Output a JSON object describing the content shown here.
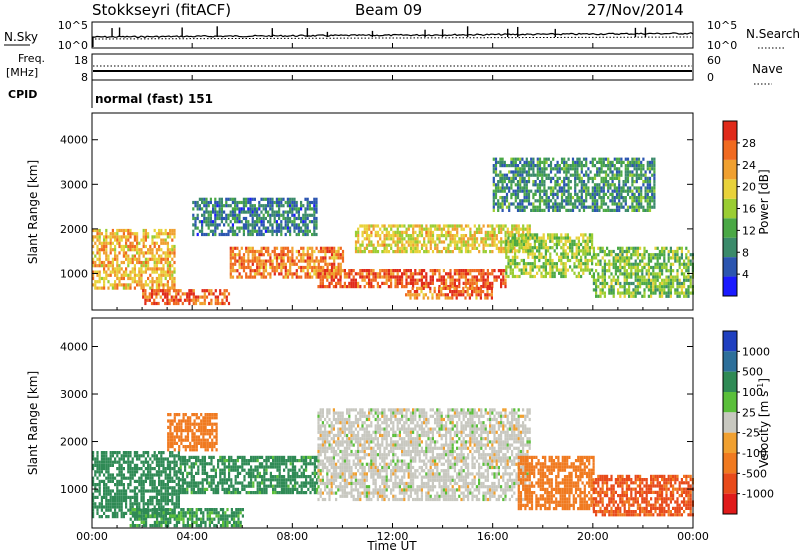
{
  "header": {
    "station": "Stokkseyri (fitACF)",
    "beam": "Beam 09",
    "date": "27/Nov/2014"
  },
  "top_panels": {
    "nsky_label": "N.Sky",
    "nsearch_label": "N.Search",
    "freq_label_1": "Freq.",
    "freq_label_2": "[MHz]",
    "nave_label": "Nave",
    "cpid_label": "CPID",
    "cpid_value": "normal (fast) 151",
    "nsky_ticks": [
      "10^5",
      "10^0"
    ],
    "nsearch_ticks": [
      "10^5",
      "10^0"
    ],
    "freq_ticks": [
      "18",
      "8"
    ],
    "nave_ticks": [
      "60",
      "0"
    ]
  },
  "chart_data": [
    {
      "type": "heatmap",
      "title": "",
      "quantity": "Power",
      "ylabel": "Slant Range [km]",
      "xlabel": "",
      "ylim": [
        180,
        4600
      ],
      "yticks": [
        "1000",
        "2000",
        "3000",
        "4000"
      ],
      "colorbar_label": "Power [dB]",
      "colorbar_ticks": [
        "4",
        "8",
        "12",
        "16",
        "20",
        "24",
        "28"
      ],
      "colorbar_range": [
        0,
        32
      ],
      "colors": [
        "#1a1aff",
        "#2b55b0",
        "#3a8a6a",
        "#4aa845",
        "#9acd32",
        "#e8d23a",
        "#f0a030",
        "#f06a20",
        "#e02a1a"
      ],
      "echo_regions": [
        {
          "t_start": 0.0,
          "t_end": 3.3,
          "range_start": 700,
          "range_end": 2000,
          "level_db": 22
        },
        {
          "t_start": 2.0,
          "t_end": 5.5,
          "range_start": 300,
          "range_end": 650,
          "level_db": 28
        },
        {
          "t_start": 5.5,
          "t_end": 10.0,
          "range_start": 900,
          "range_end": 1600,
          "level_db": 25
        },
        {
          "t_start": 9.0,
          "t_end": 16.5,
          "range_start": 700,
          "range_end": 1100,
          "level_db": 28
        },
        {
          "t_start": 12.5,
          "t_end": 16.0,
          "range_start": 450,
          "range_end": 700,
          "level_db": 26
        },
        {
          "t_start": 10.5,
          "t_end": 17.5,
          "range_start": 1500,
          "range_end": 2100,
          "level_db": 20
        },
        {
          "t_start": 16.5,
          "t_end": 20.0,
          "range_start": 900,
          "range_end": 1900,
          "level_db": 16
        },
        {
          "t_start": 20.0,
          "t_end": 24.0,
          "range_start": 500,
          "range_end": 1600,
          "level_db": 14
        },
        {
          "t_start": 4.0,
          "t_end": 9.0,
          "range_start": 1900,
          "range_end": 2700,
          "level_db": 8
        },
        {
          "t_start": 16.0,
          "t_end": 22.5,
          "range_start": 2400,
          "range_end": 3600,
          "level_db": 10
        }
      ]
    },
    {
      "type": "heatmap",
      "title": "",
      "quantity": "Velocity",
      "ylabel": "Slant Range [km]",
      "xlabel": "Time UT",
      "ylim": [
        180,
        4600
      ],
      "yticks": [
        "1000",
        "2000",
        "3000",
        "4000"
      ],
      "colorbar_label": "Velocity [m s^-1]",
      "colorbar_ticks": [
        "1000",
        "500",
        "100",
        "25",
        "-25",
        "-100",
        "-500",
        "-1000"
      ],
      "colors": [
        "#2040c0",
        "#2d6f9a",
        "#2f8a55",
        "#5abf3a",
        "#c8c8c0",
        "#f0a030",
        "#f07a20",
        "#e84a1a",
        "#e01a1a"
      ],
      "echo_regions": [
        {
          "t_start": 0.0,
          "t_end": 3.5,
          "range_start": 400,
          "range_end": 1800,
          "velocity": 300
        },
        {
          "t_start": 3.5,
          "t_end": 9.0,
          "range_start": 900,
          "range_end": 1700,
          "velocity": 150
        },
        {
          "t_start": 1.5,
          "t_end": 6.0,
          "range_start": 250,
          "range_end": 600,
          "velocity": 120
        },
        {
          "t_start": 9.0,
          "t_end": 17.5,
          "range_start": 800,
          "range_end": 2700,
          "velocity": 0
        },
        {
          "t_start": 17.0,
          "t_end": 20.0,
          "range_start": 600,
          "range_end": 1700,
          "velocity": -300
        },
        {
          "t_start": 20.0,
          "t_end": 24.0,
          "range_start": 450,
          "range_end": 1300,
          "velocity": -600
        },
        {
          "t_start": 3.0,
          "t_end": 5.0,
          "range_start": 1800,
          "range_end": 2600,
          "velocity": -200
        }
      ]
    }
  ],
  "time_axis": {
    "label": "Time UT",
    "ticks": [
      "00:00",
      "04:00",
      "08:00",
      "12:00",
      "16:00",
      "20:00",
      "00:00"
    ],
    "range_hours": [
      0,
      24
    ]
  }
}
